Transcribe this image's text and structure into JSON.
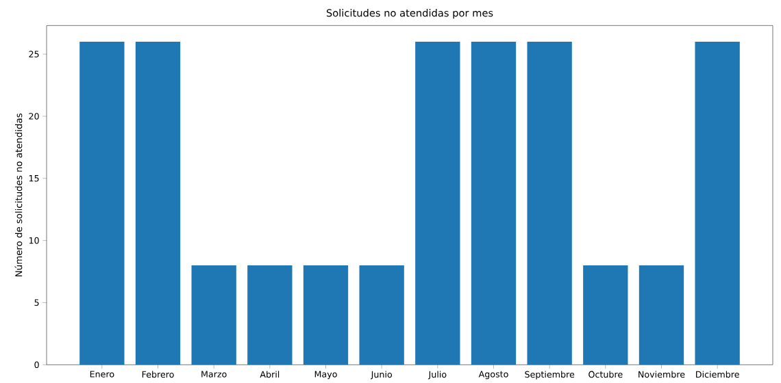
{
  "chart_data": {
    "type": "bar",
    "title": "Solicitudes no atendidas por mes",
    "ylabel": "Número de solicitudes no atendidas",
    "categories": [
      "Enero",
      "Febrero",
      "Marzo",
      "Abril",
      "Mayo",
      "Junio",
      "Julio",
      "Agosto",
      "Septiembre",
      "Octubre",
      "Noviembre",
      "Diciembre"
    ],
    "values": [
      26,
      26,
      8,
      8,
      8,
      8,
      26,
      26,
      26,
      8,
      8,
      26
    ],
    "color": "#1f77b4",
    "ylim": [
      0,
      27.3
    ],
    "yticks": [
      0,
      5,
      10,
      15,
      20,
      25
    ],
    "grid": false
  }
}
